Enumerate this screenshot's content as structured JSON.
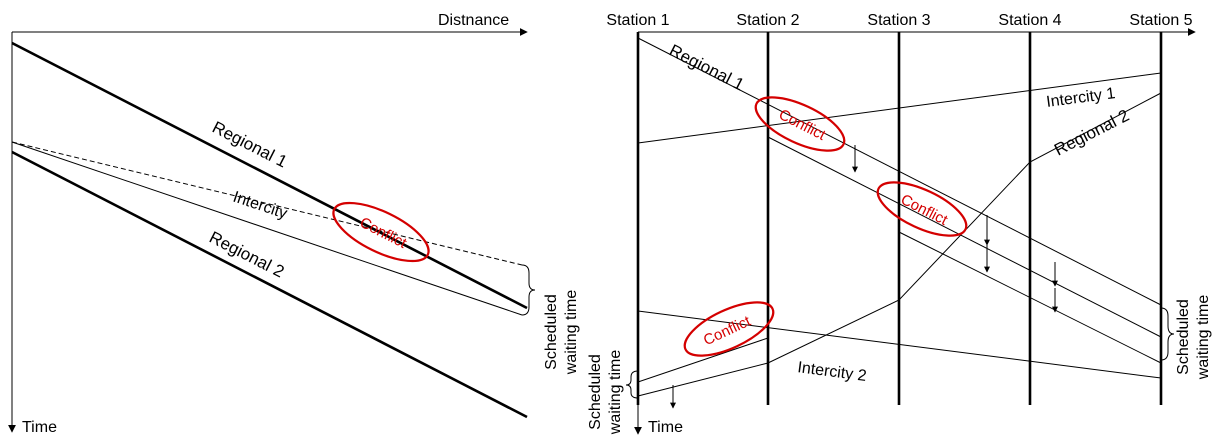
{
  "left_panel": {
    "axis_x_label": "Distnance",
    "axis_y_label": "Time",
    "labels": {
      "regional1": "Regional 1",
      "intercity": "Intercity",
      "regional2": "Regional 2",
      "conflict": "Conflict"
    },
    "waiting_label": [
      "Scheduled",
      "waiting time"
    ]
  },
  "right_panel": {
    "stations": [
      "Station 1",
      "Station 2",
      "Station 3",
      "Station 4",
      "Station 5"
    ],
    "axis_y_label": "Time",
    "labels": {
      "regional1": "Regional 1",
      "regional2": "Regional 2",
      "intercity1": "Intercity 1",
      "intercity2": "Intercity 2",
      "conflict": "Conflict"
    },
    "waiting_label_left": [
      "Scheduled",
      "waiting time"
    ],
    "waiting_label_right": [
      "Scheduled",
      "waiting time"
    ]
  },
  "colors": {
    "conflict": "#d40000",
    "lines": "#000000"
  }
}
